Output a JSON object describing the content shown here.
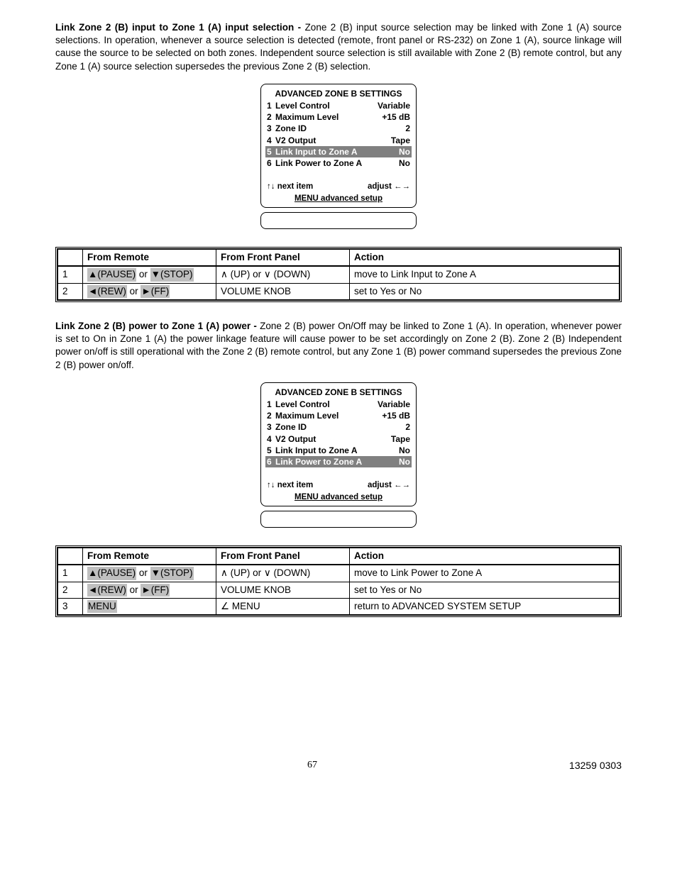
{
  "section1": {
    "heading": "Link Zone 2 (B) input to Zone 1 (A) input selection - ",
    "body": "Zone 2 (B) input source selection may be linked with Zone 1 (A) source selections. In operation, whenever a source selection is detected (remote, front panel or RS-232) on Zone 1 (A), source linkage will cause the source to be selected on both zones. Independent source selection is still available with Zone 2 (B) remote control, but any Zone 1 (A) source selection supersedes the previous Zone 2 (B) selection."
  },
  "menu1": {
    "title": "ADVANCED ZONE B SETTINGS",
    "rows": [
      {
        "num": "1",
        "label": "Level Control",
        "value": "Variable",
        "hl": false
      },
      {
        "num": "2",
        "label": "Maximum Level",
        "value": "+15 dB",
        "hl": false
      },
      {
        "num": "3",
        "label": "Zone ID",
        "value": "2",
        "hl": false
      },
      {
        "num": "4",
        "label": "V2 Output",
        "value": "Tape",
        "hl": false
      },
      {
        "num": "5",
        "label": "Link Input  to Zone A",
        "value": "No",
        "hl": true
      },
      {
        "num": "6",
        "label": "Link Power to Zone A",
        "value": "No",
        "hl": false
      }
    ],
    "nav_left": "↑↓ next item",
    "nav_right": "adjust ←→",
    "footer": "MENU advanced setup"
  },
  "table1": {
    "headers": {
      "remote": "From Remote",
      "panel": "From Front Panel",
      "action": "Action"
    },
    "rows": [
      {
        "idx": "1",
        "remote_a": "▲(PAUSE)",
        "remote_sep": " or ",
        "remote_b": "▼(STOP)",
        "panel": "∧ (UP) or ∨ (DOWN)",
        "action": "move to Link Input to Zone A"
      },
      {
        "idx": "2",
        "remote_a": "◄(REW)",
        "remote_sep": " or ",
        "remote_b": "►(FF)",
        "panel": "VOLUME KNOB",
        "action": "set to Yes or No"
      }
    ]
  },
  "section2": {
    "heading": "Link Zone 2 (B) power to Zone 1 (A) power - ",
    "body": "Zone 2 (B) power On/Off may be linked to Zone 1 (A). In operation, whenever power is set to On in Zone 1 (A) the power linkage feature will cause power to be set accordingly on Zone 2 (B). Zone 2 (B) Independent power on/off is still operational with the Zone 2 (B) remote control, but any Zone 1 (B) power command supersedes the previous Zone 2 (B) power on/off."
  },
  "menu2": {
    "title": "ADVANCED ZONE B SETTINGS",
    "rows": [
      {
        "num": "1",
        "label": "Level Control",
        "value": "Variable",
        "hl": false
      },
      {
        "num": "2",
        "label": "Maximum Level",
        "value": "+15 dB",
        "hl": false
      },
      {
        "num": "3",
        "label": "Zone ID",
        "value": "2",
        "hl": false
      },
      {
        "num": "4",
        "label": "V2 Output",
        "value": "Tape",
        "hl": false
      },
      {
        "num": "5",
        "label": "Link Input  to Zone A",
        "value": "No",
        "hl": false
      },
      {
        "num": "6",
        "label": "Link Power to Zone A",
        "value": "No",
        "hl": true
      }
    ],
    "nav_left": "↑↓ next item",
    "nav_right": "adjust ←→",
    "footer": "MENU advanced setup"
  },
  "table2": {
    "headers": {
      "remote": "From Remote",
      "panel": "From Front Panel",
      "action": "Action"
    },
    "rows": [
      {
        "idx": "1",
        "remote_a": "▲(PAUSE)",
        "remote_sep": " or ",
        "remote_b": "▼(STOP)",
        "panel": "∧ (UP) or ∨ (DOWN)",
        "action": "move to Link Power to Zone A"
      },
      {
        "idx": "2",
        "remote_a": "◄(REW)",
        "remote_sep": " or ",
        "remote_b": "►(FF)",
        "panel": "VOLUME KNOB",
        "action": "set to Yes or No"
      },
      {
        "idx": "3",
        "remote_a": "MENU",
        "remote_sep": "",
        "remote_b": "",
        "panel": "∠ MENU",
        "action": "return to ADVANCED SYSTEM SETUP"
      }
    ]
  },
  "footer": {
    "page": "67",
    "doc": "13259 0303"
  }
}
